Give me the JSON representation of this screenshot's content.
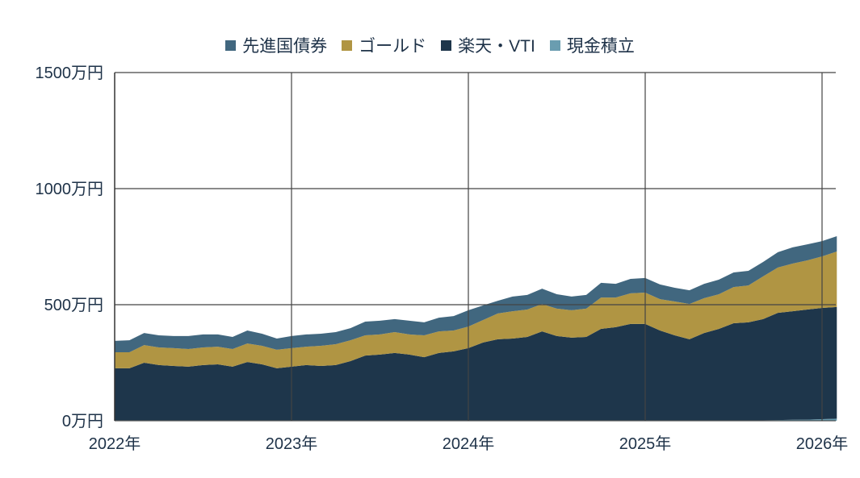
{
  "chart_data": {
    "type": "area",
    "stacked": true,
    "title": "",
    "xlabel": "",
    "ylabel": "",
    "ylim": [
      0,
      1500
    ],
    "yticks": [
      "0万円",
      "500万円",
      "1000万円",
      "1500万円"
    ],
    "ytick_values": [
      0,
      500,
      1000,
      1500
    ],
    "xticks": [
      "2022年",
      "2023年",
      "2024年",
      "2025年",
      "2026年"
    ],
    "xtick_values": [
      "2022-01",
      "2023-01",
      "2024-01",
      "2025-01",
      "2026-01"
    ],
    "grid": true,
    "legend_position": "top",
    "x": [
      "2022-01",
      "2022-02",
      "2022-03",
      "2022-04",
      "2022-05",
      "2022-06",
      "2022-07",
      "2022-08",
      "2022-09",
      "2022-10",
      "2022-11",
      "2022-12",
      "2023-01",
      "2023-02",
      "2023-03",
      "2023-04",
      "2023-05",
      "2023-06",
      "2023-07",
      "2023-08",
      "2023-09",
      "2023-10",
      "2023-11",
      "2023-12",
      "2024-01",
      "2024-02",
      "2024-03",
      "2024-04",
      "2024-05",
      "2024-06",
      "2024-07",
      "2024-08",
      "2024-09",
      "2024-10",
      "2024-11",
      "2024-12",
      "2025-01",
      "2025-02",
      "2025-03",
      "2025-04",
      "2025-05",
      "2025-06",
      "2025-07",
      "2025-08",
      "2025-09",
      "2025-10",
      "2025-11",
      "2025-12",
      "2026-01",
      "2026-02"
    ],
    "series": [
      {
        "name": "現金積立",
        "color": "#6a9db0",
        "values": [
          2,
          2,
          2,
          2,
          2,
          2,
          2,
          2,
          2,
          2,
          2,
          2,
          2,
          2,
          2,
          2,
          2,
          2,
          2,
          2,
          2,
          2,
          2,
          2,
          2,
          2,
          2,
          2,
          2,
          2,
          2,
          2,
          2,
          2,
          2,
          2,
          2,
          2,
          2,
          2,
          2,
          2,
          2,
          2,
          2,
          3,
          4,
          5,
          7,
          9
        ]
      },
      {
        "name": "楽天・VTI",
        "color": "#1e364b",
        "values": [
          224,
          224,
          248,
          238,
          234,
          231,
          238,
          241,
          231,
          251,
          241,
          224,
          231,
          238,
          234,
          238,
          255,
          279,
          283,
          290,
          283,
          272,
          290,
          297,
          311,
          335,
          349,
          352,
          359,
          383,
          363,
          356,
          359,
          394,
          401,
          415,
          415,
          387,
          366,
          349,
          376,
          394,
          418,
          422,
          436,
          462,
          468,
          474,
          479,
          481
        ]
      },
      {
        "name": "ゴールド",
        "color": "#b09543",
        "values": [
          69,
          69,
          76,
          76,
          77,
          76,
          76,
          76,
          76,
          80,
          80,
          80,
          80,
          79,
          87,
          90,
          90,
          87,
          87,
          90,
          87,
          94,
          93,
          90,
          93,
          97,
          111,
          118,
          118,
          118,
          118,
          118,
          122,
          135,
          128,
          132,
          135,
          135,
          146,
          152,
          150,
          149,
          156,
          159,
          184,
          195,
          205,
          212,
          222,
          239
        ]
      },
      {
        "name": "先進国債券",
        "color": "#41677f",
        "values": [
          49,
          52,
          52,
          52,
          52,
          56,
          56,
          53,
          52,
          56,
          52,
          48,
          52,
          53,
          52,
          52,
          52,
          59,
          59,
          56,
          59,
          56,
          59,
          62,
          70,
          63,
          55,
          63,
          63,
          66,
          62,
          59,
          59,
          63,
          59,
          62,
          63,
          63,
          59,
          59,
          62,
          63,
          63,
          63,
          62,
          66,
          70,
          69,
          66,
          66
        ]
      }
    ],
    "legend_order": [
      "先進国債券",
      "ゴールド",
      "楽天・VTI",
      "現金積立"
    ]
  },
  "legend": [
    {
      "label": "先進国債券",
      "color": "#41677f"
    },
    {
      "label": "ゴールド",
      "color": "#b09543"
    },
    {
      "label": "楽天・VTI",
      "color": "#1e364b"
    },
    {
      "label": "現金積立",
      "color": "#6a9db0"
    }
  ]
}
